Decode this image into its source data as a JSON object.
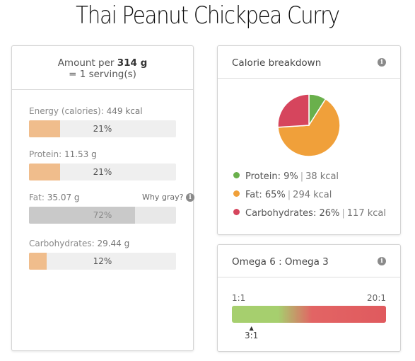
{
  "page": {
    "title": "Thai Peanut Chickpea Curry"
  },
  "nutrition": {
    "amount_prefix": "Amount per",
    "amount_value": "314 g",
    "serving": "= 1 serving(s)",
    "items": [
      {
        "name": "Energy (calories):",
        "value": "449 kcal",
        "percent_label": "21%",
        "percent": 21,
        "gray": false
      },
      {
        "name": "Protein:",
        "value": "11.53 g",
        "percent_label": "21%",
        "percent": 21,
        "gray": false
      },
      {
        "name": "Fat:",
        "value": "35.07 g",
        "percent_label": "72%",
        "percent": 72,
        "gray": true,
        "extra": "Why gray?"
      },
      {
        "name": "Carbohydrates:",
        "value": "29.44 g",
        "percent_label": "12%",
        "percent": 12,
        "gray": false
      }
    ]
  },
  "calories": {
    "heading": "Calorie breakdown",
    "info_icon": "info-icon",
    "legend": [
      {
        "label": "Protein:",
        "pct": "9%",
        "kcal": "38 kcal",
        "color": "#6ab04c"
      },
      {
        "label": "Fat:",
        "pct": "65%",
        "kcal": "294 kcal",
        "color": "#f0a03a"
      },
      {
        "label": "Carbohydrates:",
        "pct": "26%",
        "kcal": "117 kcal",
        "color": "#d6455d"
      }
    ]
  },
  "chart_data": {
    "type": "pie",
    "categories": [
      "Protein",
      "Fat",
      "Carbohydrates"
    ],
    "values": [
      9,
      65,
      26
    ],
    "colors": [
      "#6ab04c",
      "#f0a03a",
      "#d6455d"
    ]
  },
  "omega": {
    "heading": "Omega 6 : Omega 3",
    "scale_min": "1:1",
    "scale_max": "20:1",
    "marker": "3:1",
    "colors": {
      "good": "#a6cf6e",
      "bad": "#e05a5e"
    }
  }
}
